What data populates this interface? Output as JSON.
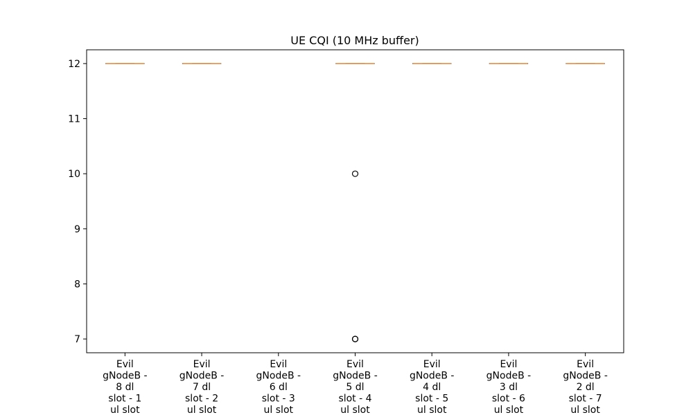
{
  "chart_data": {
    "type": "box",
    "title": "UE CQI (10 MHz buffer)",
    "xlabel": "",
    "ylabel": "",
    "ylim": [
      6.75,
      12.25
    ],
    "yticks": [
      7,
      8,
      9,
      10,
      11,
      12
    ],
    "grid": false,
    "categories": [
      "Evil gNodeB - 8 dl slot - 1 ul slot",
      "Evil gNodeB - 7 dl slot - 2 ul slot",
      "Evil gNodeB - 6 dl slot - 3 ul slot",
      "Evil gNodeB - 5 dl slot - 4 ul slot",
      "Evil gNodeB - 4 dl slot - 5 ul slot",
      "Evil gNodeB - 3 dl slot - 6 ul slot",
      "Evil gNodeB - 2 dl slot - 7 ul slot"
    ],
    "category_label_lines": [
      [
        "Evil",
        "gNodeB -",
        "8 dl",
        "slot - 1",
        "ul slot"
      ],
      [
        "Evil",
        "gNodeB -",
        "7 dl",
        "slot - 2",
        "ul slot"
      ],
      [
        "Evil",
        "gNodeB -",
        "6 dl",
        "slot - 3",
        "ul slot"
      ],
      [
        "Evil",
        "gNodeB -",
        "5 dl",
        "slot - 4",
        "ul slot"
      ],
      [
        "Evil",
        "gNodeB -",
        "4 dl",
        "slot - 5",
        "ul slot"
      ],
      [
        "Evil",
        "gNodeB -",
        "3 dl",
        "slot - 6",
        "ul slot"
      ],
      [
        "Evil",
        "gNodeB -",
        "2 dl",
        "slot - 7",
        "ul slot"
      ]
    ],
    "boxes": [
      {
        "min": 12,
        "q1": 12,
        "median": 12,
        "q3": 12,
        "max": 12,
        "outliers": []
      },
      {
        "min": 12,
        "q1": 12,
        "median": 12,
        "q3": 12,
        "max": 12,
        "outliers": []
      },
      null,
      {
        "min": 12,
        "q1": 12,
        "median": 12,
        "q3": 12,
        "max": 12,
        "outliers": [
          10,
          7,
          7
        ]
      },
      {
        "min": 12,
        "q1": 12,
        "median": 12,
        "q3": 12,
        "max": 12,
        "outliers": []
      },
      {
        "min": 12,
        "q1": 12,
        "median": 12,
        "q3": 12,
        "max": 12,
        "outliers": []
      },
      {
        "min": 12,
        "q1": 12,
        "median": 12,
        "q3": 12,
        "max": 12,
        "outliers": []
      }
    ],
    "colors": {
      "median": "#e8893a",
      "box": "#000000",
      "outlier": "#000000"
    }
  }
}
